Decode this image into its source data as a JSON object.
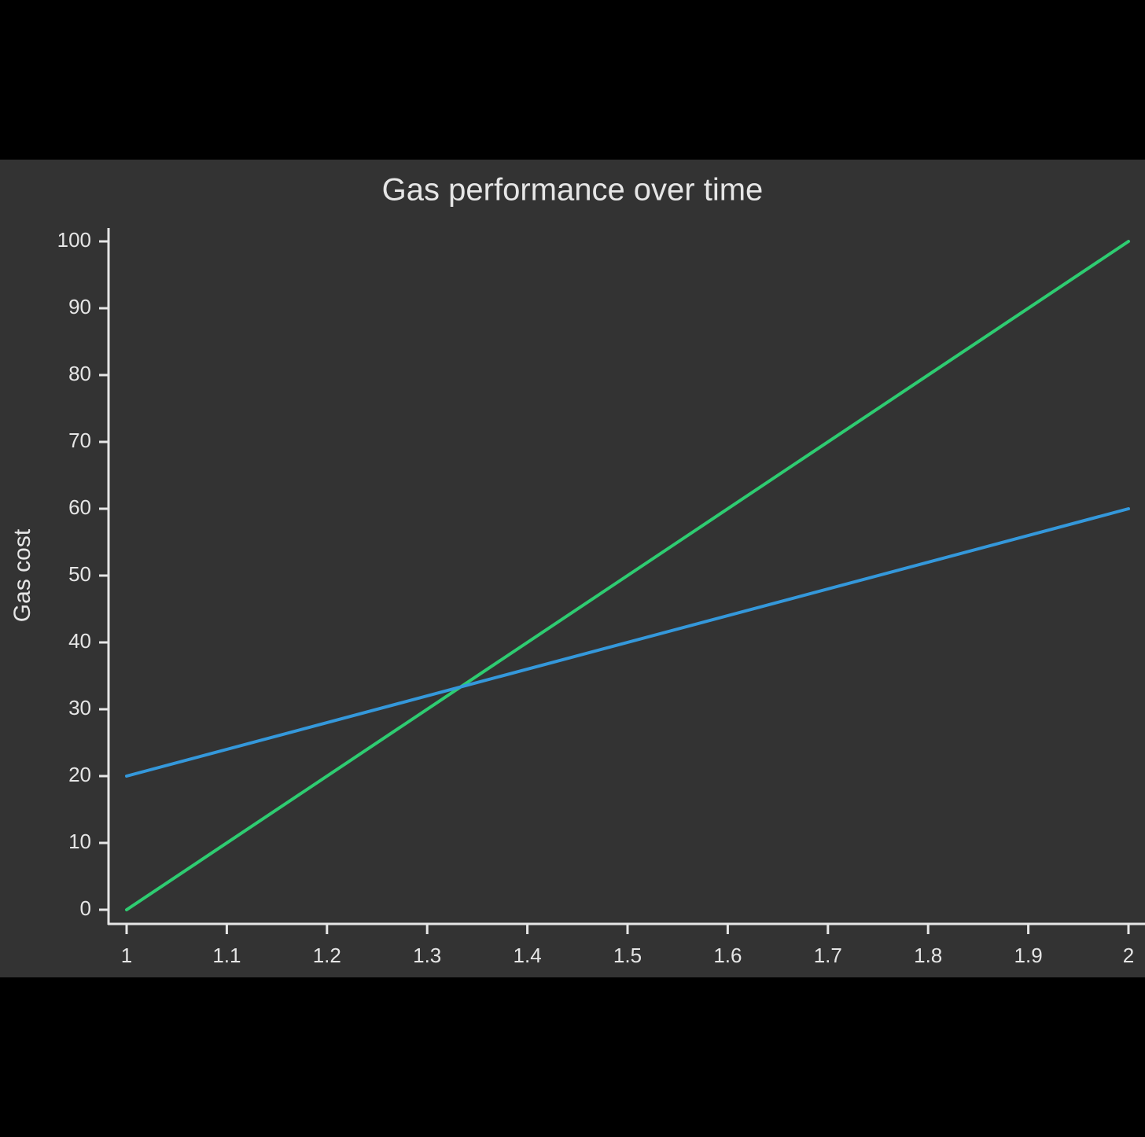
{
  "chart_data": {
    "type": "line",
    "title": "Gas performance over time",
    "y_label": "Gas cost",
    "x": [
      1,
      2
    ],
    "series": [
      {
        "color": "#2ecc71",
        "values": [
          0,
          100
        ]
      },
      {
        "color": "#3498db",
        "values": [
          20,
          60
        ]
      }
    ],
    "xlim": [
      1,
      2
    ],
    "xticks": [
      1,
      1.1,
      1.2,
      1.3,
      1.4,
      1.5,
      1.6,
      1.7,
      1.8,
      1.9,
      2
    ],
    "ylim": [
      0,
      100
    ],
    "yticks": [
      0,
      10,
      20,
      30,
      40,
      50,
      60,
      70,
      80,
      90,
      100
    ],
    "grid": false
  }
}
